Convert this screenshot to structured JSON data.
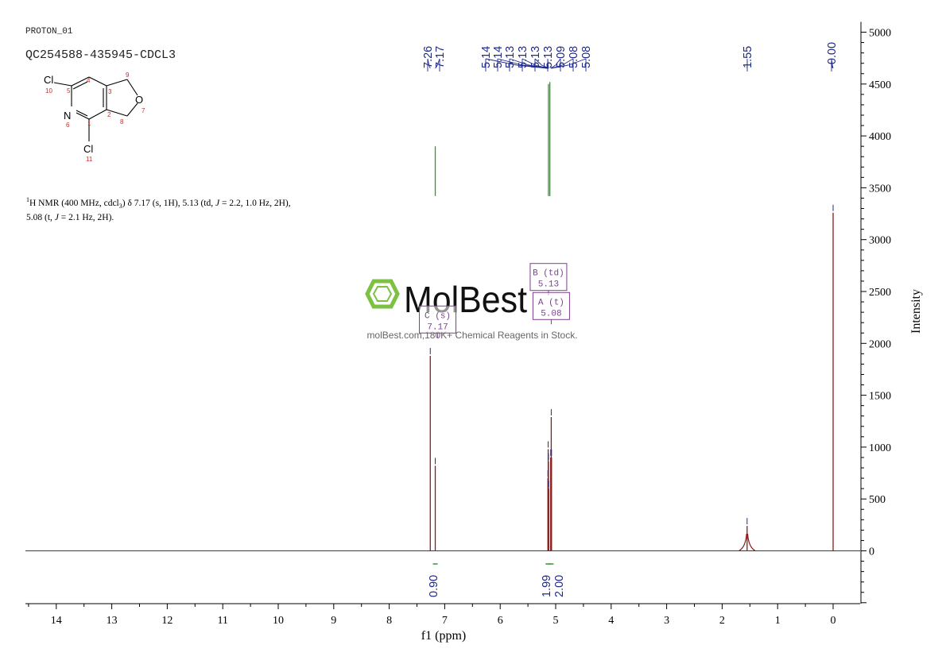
{
  "header": {
    "experiment": "PROTON_01",
    "sample_id": "QC254588-435945-CDCL3"
  },
  "molecule": {
    "atoms": [
      {
        "label": "Cl",
        "number": "10"
      },
      {
        "label": "N",
        "number": "6"
      },
      {
        "label": "O",
        "number": "7"
      },
      {
        "label": "Cl",
        "number": "11"
      }
    ],
    "numbers": [
      "1",
      "2",
      "3",
      "4",
      "5",
      "8",
      "9"
    ]
  },
  "nmr_summary": {
    "line1_sup": "1",
    "line1": "H NMR (400 MHz, cdcl",
    "line1_sub": "3",
    "line1_rest_a": ") δ 7.17 (s, 1H), 5.13 (td, ",
    "line1_j": "J",
    "line1_rest_b": " = 2.2, 1.0 Hz, 2H),",
    "line2_a": "5.08 (t, ",
    "line2_j": "J",
    "line2_b": " = 2.1 Hz, 2H)."
  },
  "watermark": {
    "brand": "MolBest",
    "tagline": "molBest.com,180K+ Chemical Reagents in Stock."
  },
  "chart_data": {
    "type": "line",
    "xlabel": "f1 (ppm)",
    "ylabel": "Intensity",
    "xlim": [
      14.6,
      -0.5
    ],
    "ylim": [
      -520,
      5100
    ],
    "x_ticks": [
      14,
      13,
      12,
      11,
      10,
      9,
      8,
      7,
      6,
      5,
      4,
      3,
      2,
      1,
      0
    ],
    "y_ticks": [
      0,
      500,
      1000,
      1500,
      2000,
      2500,
      3000,
      3500,
      4000,
      4500,
      5000
    ],
    "grid": false,
    "peaks": [
      {
        "ppm": 7.26,
        "height": 1880
      },
      {
        "ppm": 7.17,
        "height": 820
      },
      {
        "ppm": 5.14,
        "height": 700
      },
      {
        "ppm": 5.135,
        "height": 980
      },
      {
        "ppm": 5.13,
        "height": 860
      },
      {
        "ppm": 5.125,
        "height": 600
      },
      {
        "ppm": 5.09,
        "height": 900
      },
      {
        "ppm": 5.08,
        "height": 1290
      },
      {
        "ppm": 5.075,
        "height": 900
      },
      {
        "ppm": 1.55,
        "height": 240
      },
      {
        "ppm": 0.0,
        "height": 3260
      }
    ],
    "peak_labels": [
      {
        "ppm": 7.26,
        "text": "7.26"
      },
      {
        "ppm": 7.17,
        "text": "7.17"
      },
      {
        "ppm": 5.14,
        "text": "5.14"
      },
      {
        "ppm": 5.14,
        "text": "5.14"
      },
      {
        "ppm": 5.13,
        "text": "5.13"
      },
      {
        "ppm": 5.13,
        "text": "5.13"
      },
      {
        "ppm": 5.13,
        "text": "5.13"
      },
      {
        "ppm": 5.13,
        "text": "5.13"
      },
      {
        "ppm": 5.09,
        "text": "5.09"
      },
      {
        "ppm": 5.08,
        "text": "5.08"
      },
      {
        "ppm": 5.08,
        "text": "5.08"
      },
      {
        "ppm": 1.55,
        "text": "1.55"
      },
      {
        "ppm": 0.0,
        "text": "-0.00"
      }
    ],
    "integral_curves": [
      {
        "ppm": 7.17,
        "bottom": 3420,
        "top": 3900
      },
      {
        "ppm": 5.13,
        "bottom": 3420,
        "top": 4500
      },
      {
        "ppm": 5.105,
        "bottom": 3420,
        "top": 4520
      }
    ],
    "multiplet_boxes": [
      {
        "name": "B (td)",
        "shift": "5.13",
        "ppm": 5.13,
        "level": 2640
      },
      {
        "name": "A (t)",
        "shift": "5.08",
        "ppm": 5.08,
        "level": 2360
      },
      {
        "name": "C (s)",
        "shift": "7.17",
        "ppm": 7.17,
        "level": 2230
      }
    ],
    "integrals": [
      {
        "ppm": 7.17,
        "value": "0.90"
      },
      {
        "ppm": 5.14,
        "value": "1.99"
      },
      {
        "ppm": 5.08,
        "value": "2.00"
      }
    ],
    "colors": {
      "spectrum": "#8b1a1a",
      "axis": "#000000",
      "label": "#1f2a8a",
      "integral": "#2e9a2e",
      "box": "#7b3f8f",
      "watermark": "#7dc142"
    }
  }
}
